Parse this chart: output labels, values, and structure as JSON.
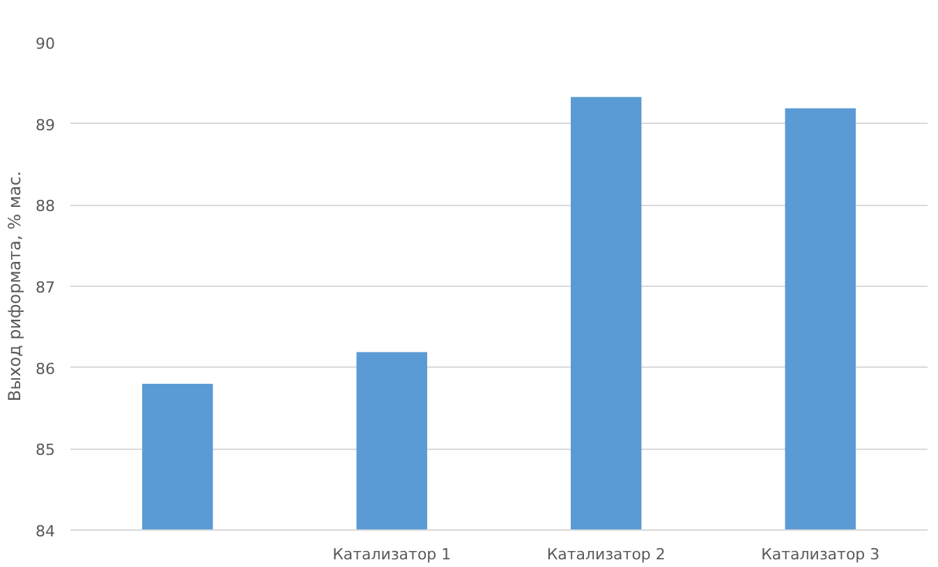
{
  "chart_data": {
    "type": "bar",
    "ylabel": "Выход риформата, % мас.",
    "categories": [
      null,
      "Катализатор 1",
      "Катализатор 2",
      "Катализатор 3"
    ],
    "values": [
      85.8,
      86.19,
      89.33,
      89.19
    ],
    "color": "#5b9bd5",
    "ylim": [
      84,
      90
    ],
    "yticks": [
      84,
      85,
      86,
      87,
      88,
      89,
      90
    ],
    "grid": "y"
  }
}
